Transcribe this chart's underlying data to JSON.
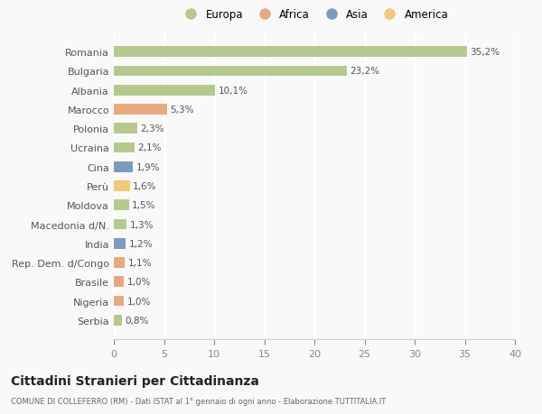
{
  "categories": [
    "Serbia",
    "Nigeria",
    "Brasile",
    "Rep. Dem. d/Congo",
    "India",
    "Macedonia d/N.",
    "Moldova",
    "Perù",
    "Cina",
    "Ucraina",
    "Polonia",
    "Marocco",
    "Albania",
    "Bulgaria",
    "Romania"
  ],
  "values": [
    0.8,
    1.0,
    1.0,
    1.1,
    1.2,
    1.3,
    1.5,
    1.6,
    1.9,
    2.1,
    2.3,
    5.3,
    10.1,
    23.2,
    35.2
  ],
  "labels": [
    "0,8%",
    "1,0%",
    "1,0%",
    "1,1%",
    "1,2%",
    "1,3%",
    "1,5%",
    "1,6%",
    "1,9%",
    "2,1%",
    "2,3%",
    "5,3%",
    "10,1%",
    "23,2%",
    "35,2%"
  ],
  "colors": [
    "#b5c98e",
    "#e8a97e",
    "#e8a97e",
    "#e8a97e",
    "#7b9bbf",
    "#b5c98e",
    "#b5c98e",
    "#f0c97a",
    "#7b9bbf",
    "#b5c98e",
    "#b5c98e",
    "#e8a97e",
    "#b5c98e",
    "#b5c98e",
    "#b5c98e"
  ],
  "legend_labels": [
    "Europa",
    "Africa",
    "Asia",
    "America"
  ],
  "legend_colors": [
    "#b5c98e",
    "#e8a97e",
    "#7b9bbf",
    "#f0c97a"
  ],
  "title": "Cittadini Stranieri per Cittadinanza",
  "subtitle": "COMUNE DI COLLEFERRO (RM) - Dati ISTAT al 1° gennaio di ogni anno - Elaborazione TUTTITALIA.IT",
  "xlim": [
    0,
    40
  ],
  "xticks": [
    0,
    5,
    10,
    15,
    20,
    25,
    30,
    35,
    40
  ],
  "background_color": "#f9f9f9",
  "grid_color": "#ffffff",
  "bar_height": 0.55
}
